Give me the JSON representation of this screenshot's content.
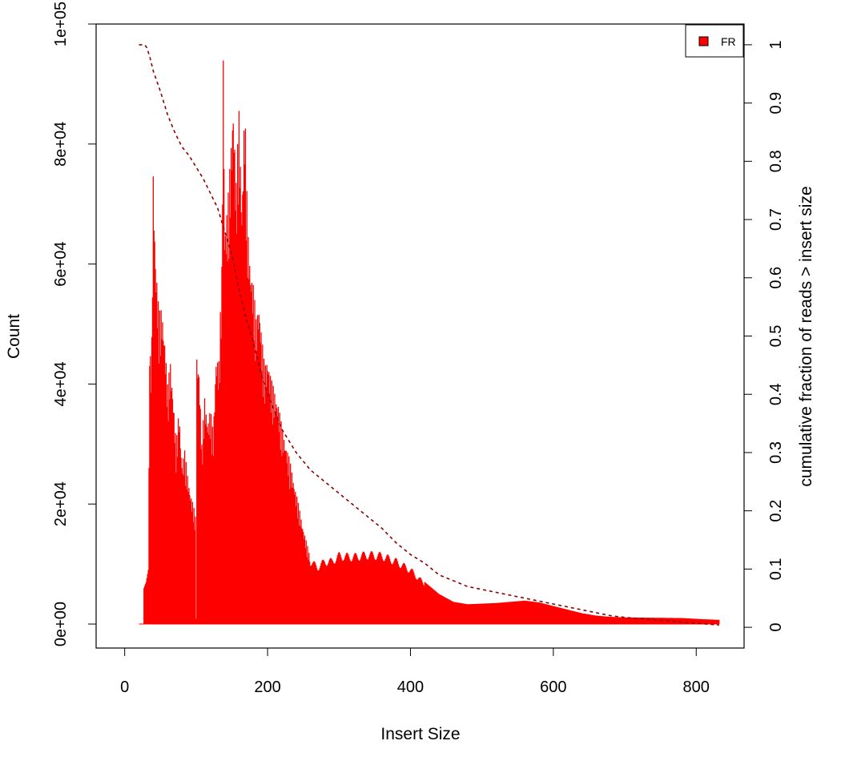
{
  "chart_data": {
    "type": "bar",
    "title": "",
    "xlabel": "Insert Size",
    "ylabel": "Count",
    "y2label": "cumulative fraction of reads > insert size",
    "xlim": [
      -40,
      867
    ],
    "ylim": [
      -4000,
      100000
    ],
    "y2lim": [
      -0.0356,
      1.0356
    ],
    "x_ticks": [
      "0",
      "200",
      "400",
      "600",
      "800"
    ],
    "x_tick_values": [
      0,
      200,
      400,
      600,
      800
    ],
    "y_ticks": [
      "0e+00",
      "2e+04",
      "4e+04",
      "6e+04",
      "8e+04",
      "1e+05"
    ],
    "y_tick_values": [
      0,
      20000,
      40000,
      60000,
      80000,
      100000
    ],
    "y2_ticks": [
      "0",
      "0.1",
      "0.2",
      "0.3",
      "0.4",
      "0.5",
      "0.6",
      "0.7",
      "0.8",
      "0.9",
      "1"
    ],
    "y2_tick_values": [
      0,
      0.1,
      0.2,
      0.3,
      0.4,
      0.5,
      0.6,
      0.7,
      0.8,
      0.9,
      1
    ],
    "legend": {
      "position": "top-right",
      "entries": [
        {
          "label": "FR",
          "color": "#ff0000"
        }
      ]
    },
    "series": [
      {
        "name": "FR",
        "kind": "histogram",
        "color": "#ff0000",
        "x_range": [
          20,
          832
        ],
        "envelope": [
          [
            20,
            0
          ],
          [
            26,
            0
          ],
          [
            27,
            6000
          ],
          [
            30,
            7000
          ],
          [
            33,
            9000
          ],
          [
            35,
            43000
          ],
          [
            38,
            48000
          ],
          [
            40,
            76000
          ],
          [
            43,
            62000
          ],
          [
            45,
            58000
          ],
          [
            48,
            52000
          ],
          [
            52,
            53000
          ],
          [
            56,
            48000
          ],
          [
            60,
            40000
          ],
          [
            64,
            44000
          ],
          [
            68,
            38000
          ],
          [
            72,
            30000
          ],
          [
            76,
            36000
          ],
          [
            80,
            27000
          ],
          [
            84,
            29000
          ],
          [
            88,
            25000
          ],
          [
            92,
            22000
          ],
          [
            96,
            20000
          ],
          [
            99,
            18000
          ],
          [
            100,
            1000
          ],
          [
            101,
            45000
          ],
          [
            104,
            43000
          ],
          [
            108,
            30000
          ],
          [
            112,
            38000
          ],
          [
            116,
            34000
          ],
          [
            120,
            36000
          ],
          [
            124,
            32000
          ],
          [
            128,
            45000
          ],
          [
            132,
            44000
          ],
          [
            136,
            60000
          ],
          [
            138,
            96500
          ],
          [
            140,
            66000
          ],
          [
            144,
            70000
          ],
          [
            148,
            78000
          ],
          [
            152,
            88000
          ],
          [
            156,
            74000
          ],
          [
            160,
            86000
          ],
          [
            164,
            70000
          ],
          [
            168,
            88000
          ],
          [
            172,
            67000
          ],
          [
            176,
            60000
          ],
          [
            180,
            57000
          ],
          [
            184,
            51000
          ],
          [
            188,
            54000
          ],
          [
            192,
            48000
          ],
          [
            196,
            43000
          ],
          [
            200,
            45000
          ],
          [
            205,
            41000
          ],
          [
            210,
            39000
          ],
          [
            215,
            37000
          ],
          [
            220,
            33000
          ],
          [
            230,
            28000
          ],
          [
            240,
            22000
          ],
          [
            250,
            16000
          ],
          [
            260,
            11000
          ],
          [
            270,
            10000
          ],
          [
            280,
            11000
          ],
          [
            290,
            11000
          ],
          [
            300,
            12000
          ],
          [
            320,
            11800
          ],
          [
            340,
            12200
          ],
          [
            360,
            12000
          ],
          [
            380,
            11000
          ],
          [
            400,
            9500
          ],
          [
            420,
            7000
          ],
          [
            440,
            5000
          ],
          [
            460,
            3700
          ],
          [
            480,
            3300
          ],
          [
            500,
            3400
          ],
          [
            520,
            3500
          ],
          [
            540,
            3700
          ],
          [
            560,
            3900
          ],
          [
            580,
            3600
          ],
          [
            600,
            3000
          ],
          [
            620,
            2400
          ],
          [
            640,
            1800
          ],
          [
            660,
            1400
          ],
          [
            680,
            1200
          ],
          [
            700,
            1100
          ],
          [
            740,
            1050
          ],
          [
            780,
            1000
          ],
          [
            810,
            800
          ],
          [
            832,
            700
          ]
        ]
      },
      {
        "name": "cumulative fraction of reads > insert size",
        "kind": "line",
        "axis": "right",
        "color": "#8b0000",
        "dash": "dashed",
        "points": [
          [
            20,
            1.0
          ],
          [
            28,
            1.0
          ],
          [
            31,
            0.995
          ],
          [
            35,
            0.98
          ],
          [
            40,
            0.955
          ],
          [
            50,
            0.92
          ],
          [
            60,
            0.88
          ],
          [
            70,
            0.85
          ],
          [
            80,
            0.825
          ],
          [
            90,
            0.81
          ],
          [
            100,
            0.79
          ],
          [
            110,
            0.77
          ],
          [
            120,
            0.745
          ],
          [
            130,
            0.72
          ],
          [
            140,
            0.68
          ],
          [
            150,
            0.64
          ],
          [
            160,
            0.58
          ],
          [
            170,
            0.53
          ],
          [
            180,
            0.49
          ],
          [
            190,
            0.44
          ],
          [
            200,
            0.4
          ],
          [
            210,
            0.37
          ],
          [
            220,
            0.34
          ],
          [
            230,
            0.32
          ],
          [
            240,
            0.3
          ],
          [
            250,
            0.285
          ],
          [
            260,
            0.27
          ],
          [
            280,
            0.25
          ],
          [
            300,
            0.23
          ],
          [
            320,
            0.21
          ],
          [
            340,
            0.19
          ],
          [
            360,
            0.17
          ],
          [
            380,
            0.145
          ],
          [
            400,
            0.125
          ],
          [
            420,
            0.11
          ],
          [
            440,
            0.09
          ],
          [
            460,
            0.08
          ],
          [
            480,
            0.07
          ],
          [
            500,
            0.065
          ],
          [
            520,
            0.06
          ],
          [
            540,
            0.055
          ],
          [
            560,
            0.05
          ],
          [
            580,
            0.045
          ],
          [
            600,
            0.04
          ],
          [
            620,
            0.035
          ],
          [
            640,
            0.03
          ],
          [
            660,
            0.025
          ],
          [
            680,
            0.02
          ],
          [
            700,
            0.017
          ],
          [
            740,
            0.013
          ],
          [
            780,
            0.009
          ],
          [
            810,
            0.006
          ],
          [
            832,
            0.004
          ]
        ]
      }
    ]
  }
}
